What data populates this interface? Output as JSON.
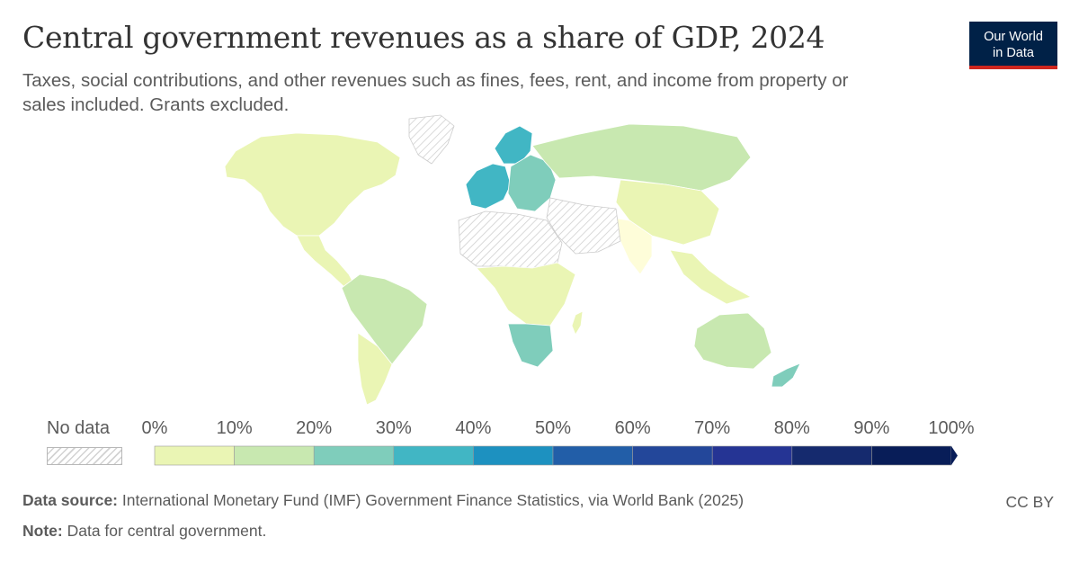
{
  "header": {
    "title": "Central government revenues as a share of GDP, 2024",
    "subtitle": "Taxes, social contributions, and other revenues such as fines, fees, rent, and income from property or sales included. Grants excluded.",
    "logo_line1": "Our World",
    "logo_line2": "in Data"
  },
  "legend": {
    "no_data_label": "No data",
    "bins": [
      {
        "label": "0%",
        "color": "#fefdd9"
      },
      {
        "label": "10%",
        "color": "#eaf5b4"
      },
      {
        "label": "20%",
        "color": "#c8e8b0"
      },
      {
        "label": "30%",
        "color": "#7fcdbb"
      },
      {
        "label": "40%",
        "color": "#41b6c4"
      },
      {
        "label": "50%",
        "color": "#1d91c0"
      },
      {
        "label": "60%",
        "color": "#225ea8"
      },
      {
        "label": "70%",
        "color": "#23479a"
      },
      {
        "label": "80%",
        "color": "#253494"
      },
      {
        "label": "90%",
        "color": "#152a6e"
      },
      {
        "label": "100%",
        "color": "#081d58"
      }
    ]
  },
  "map_regions": [
    {
      "name": "north-america",
      "color": "#eaf5b4"
    },
    {
      "name": "central-america",
      "color": "#eaf5b4"
    },
    {
      "name": "south-america",
      "color": "#c8e8b0"
    },
    {
      "name": "argentina-chile",
      "color": "#eaf5b4"
    },
    {
      "name": "greenland",
      "color": "none"
    },
    {
      "name": "europe-west",
      "color": "#41b6c4"
    },
    {
      "name": "scandinavia",
      "color": "#41b6c4"
    },
    {
      "name": "eastern-europe",
      "color": "#7fcdbb"
    },
    {
      "name": "russia",
      "color": "#c8e8b0"
    },
    {
      "name": "china",
      "color": "#eaf5b4"
    },
    {
      "name": "india",
      "color": "#fefdd9"
    },
    {
      "name": "middle-east",
      "color": "none"
    },
    {
      "name": "north-africa",
      "color": "none"
    },
    {
      "name": "central-africa",
      "color": "#eaf5b4"
    },
    {
      "name": "southern-africa",
      "color": "#7fcdbb"
    },
    {
      "name": "southeast-asia",
      "color": "#eaf5b4"
    },
    {
      "name": "australia",
      "color": "#c8e8b0"
    },
    {
      "name": "new-zealand",
      "color": "#7fcdbb"
    },
    {
      "name": "madagascar",
      "color": "#eaf5b4"
    }
  ],
  "footer": {
    "source_label": "Data source:",
    "source_text": "International Monetary Fund (IMF) Government Finance Statistics, via World Bank (2025)",
    "note_label": "Note:",
    "note_text": "Data for central government.",
    "license": "CC BY"
  }
}
